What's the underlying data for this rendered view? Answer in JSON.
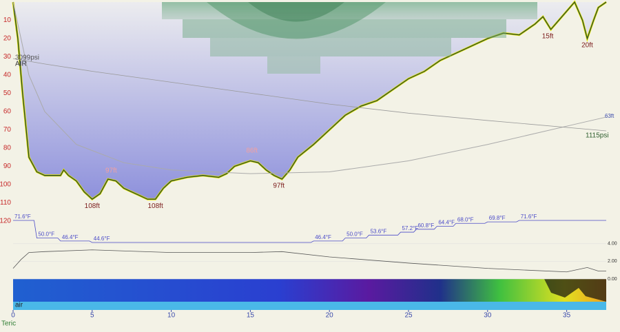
{
  "chart_data": {
    "type": "line",
    "xlim": [
      0,
      37.5
    ],
    "xticks": [
      0,
      5,
      10,
      15,
      20,
      25,
      30,
      35
    ],
    "ylim": [
      0,
      120
    ],
    "yticks": [
      10,
      20,
      30,
      40,
      50,
      60,
      70,
      80,
      90,
      100,
      110,
      120
    ],
    "invert_y": true,
    "gas": "AIR",
    "footer": "Teric",
    "band_label": "air",
    "series": [
      {
        "color": "#2f4f2f",
        "x": [
          0,
          0.3,
          0.6,
          1,
          1.5,
          2,
          3,
          3.2,
          3.5,
          4,
          4.5,
          5,
          5.5,
          6,
          6.5,
          7,
          7.5,
          8,
          8.5,
          9,
          9.5,
          10,
          11,
          12,
          13,
          13.5,
          14,
          15,
          15.5,
          16,
          16.5,
          17,
          17.5,
          18,
          19,
          20,
          21,
          22,
          23,
          24,
          25,
          26,
          27,
          28,
          29,
          30,
          31,
          32,
          33,
          33.5,
          34,
          34.5,
          35,
          35.5,
          36,
          36.3,
          36.7,
          37,
          37.5
        ],
        "values": [
          0,
          20,
          50,
          85,
          93,
          95,
          95,
          92,
          95,
          98,
          104,
          108,
          105,
          97,
          98,
          102,
          104,
          106,
          108,
          108,
          102,
          98,
          96,
          95,
          96,
          94,
          90,
          87,
          88,
          92,
          95,
          97,
          92,
          85,
          78,
          70,
          62,
          57,
          54,
          48,
          42,
          38,
          32,
          28,
          24,
          20,
          17,
          18,
          12,
          8,
          15,
          10,
          5,
          0,
          10,
          20,
          10,
          3,
          0
        ]
      }
    ],
    "annotations": [
      {
        "label": "108ft",
        "x": 5,
        "y": 108
      },
      {
        "label": "97ft",
        "x": 6.2,
        "y": 97
      },
      {
        "label": "108ft",
        "x": 9,
        "y": 108
      },
      {
        "label": "86ft",
        "x": 15.1,
        "y": 86
      },
      {
        "label": "97ft",
        "x": 16.8,
        "y": 97
      },
      {
        "label": "15ft",
        "x": 33.8,
        "y": 15
      },
      {
        "label": "20ft",
        "x": 36.3,
        "y": 20
      }
    ],
    "ceiling": {
      "x": [
        0,
        1,
        2,
        4,
        7,
        10,
        15,
        20,
        25,
        30,
        35,
        37.5
      ],
      "values": [
        0,
        40,
        60,
        78,
        88,
        92,
        94,
        93,
        87,
        78,
        68,
        63
      ],
      "value_labels": [
        null,
        null,
        null,
        null,
        null,
        null,
        null,
        null,
        null,
        null,
        null,
        "63ft"
      ]
    },
    "pressure": {
      "x": [
        0,
        2,
        5,
        10,
        15,
        20,
        25,
        30,
        37.5
      ],
      "values": [
        3099,
        2950,
        2750,
        2450,
        2150,
        1850,
        1600,
        1400,
        1115
      ],
      "value_labels": [
        "3099psi",
        null,
        null,
        null,
        null,
        null,
        null,
        null,
        "1115psi"
      ]
    },
    "temperature": {
      "color": "#4a4ac8",
      "x": [
        0,
        1.5,
        3,
        5,
        19,
        21,
        22.5,
        24.5,
        25.5,
        26.8,
        28,
        30,
        32,
        37.5
      ],
      "values": [
        71.6,
        50.0,
        46.4,
        44.6,
        46.4,
        50.0,
        53.6,
        57.2,
        60.8,
        64.4,
        68.0,
        69.8,
        71.6,
        71.6
      ],
      "value_labels": [
        "71.6°F",
        "50.0°F",
        "46.4°F",
        "44.6°F",
        "46.4°F",
        "50.0°F",
        "53.6°F",
        "57.2°F",
        "60.8°F",
        "64.4°F",
        "68.0°F",
        "69.8°F",
        "71.6°F",
        null
      ]
    },
    "rate": {
      "ylim": [
        0,
        5
      ],
      "yticks": [
        {
          "value": 0,
          "label": "0.00"
        },
        {
          "value": 2,
          "label": "2.00"
        },
        {
          "value": 4,
          "label": "4.00"
        }
      ],
      "x": [
        0,
        0.5,
        1,
        2,
        5,
        10,
        15,
        17,
        20,
        25,
        30,
        35,
        36.3,
        37,
        37.5
      ],
      "values": [
        1.2,
        2.2,
        3.0,
        3.1,
        3.3,
        3.0,
        3.0,
        3.1,
        2.5,
        1.8,
        1.2,
        0.8,
        1.3,
        0.9,
        0.9
      ]
    }
  }
}
